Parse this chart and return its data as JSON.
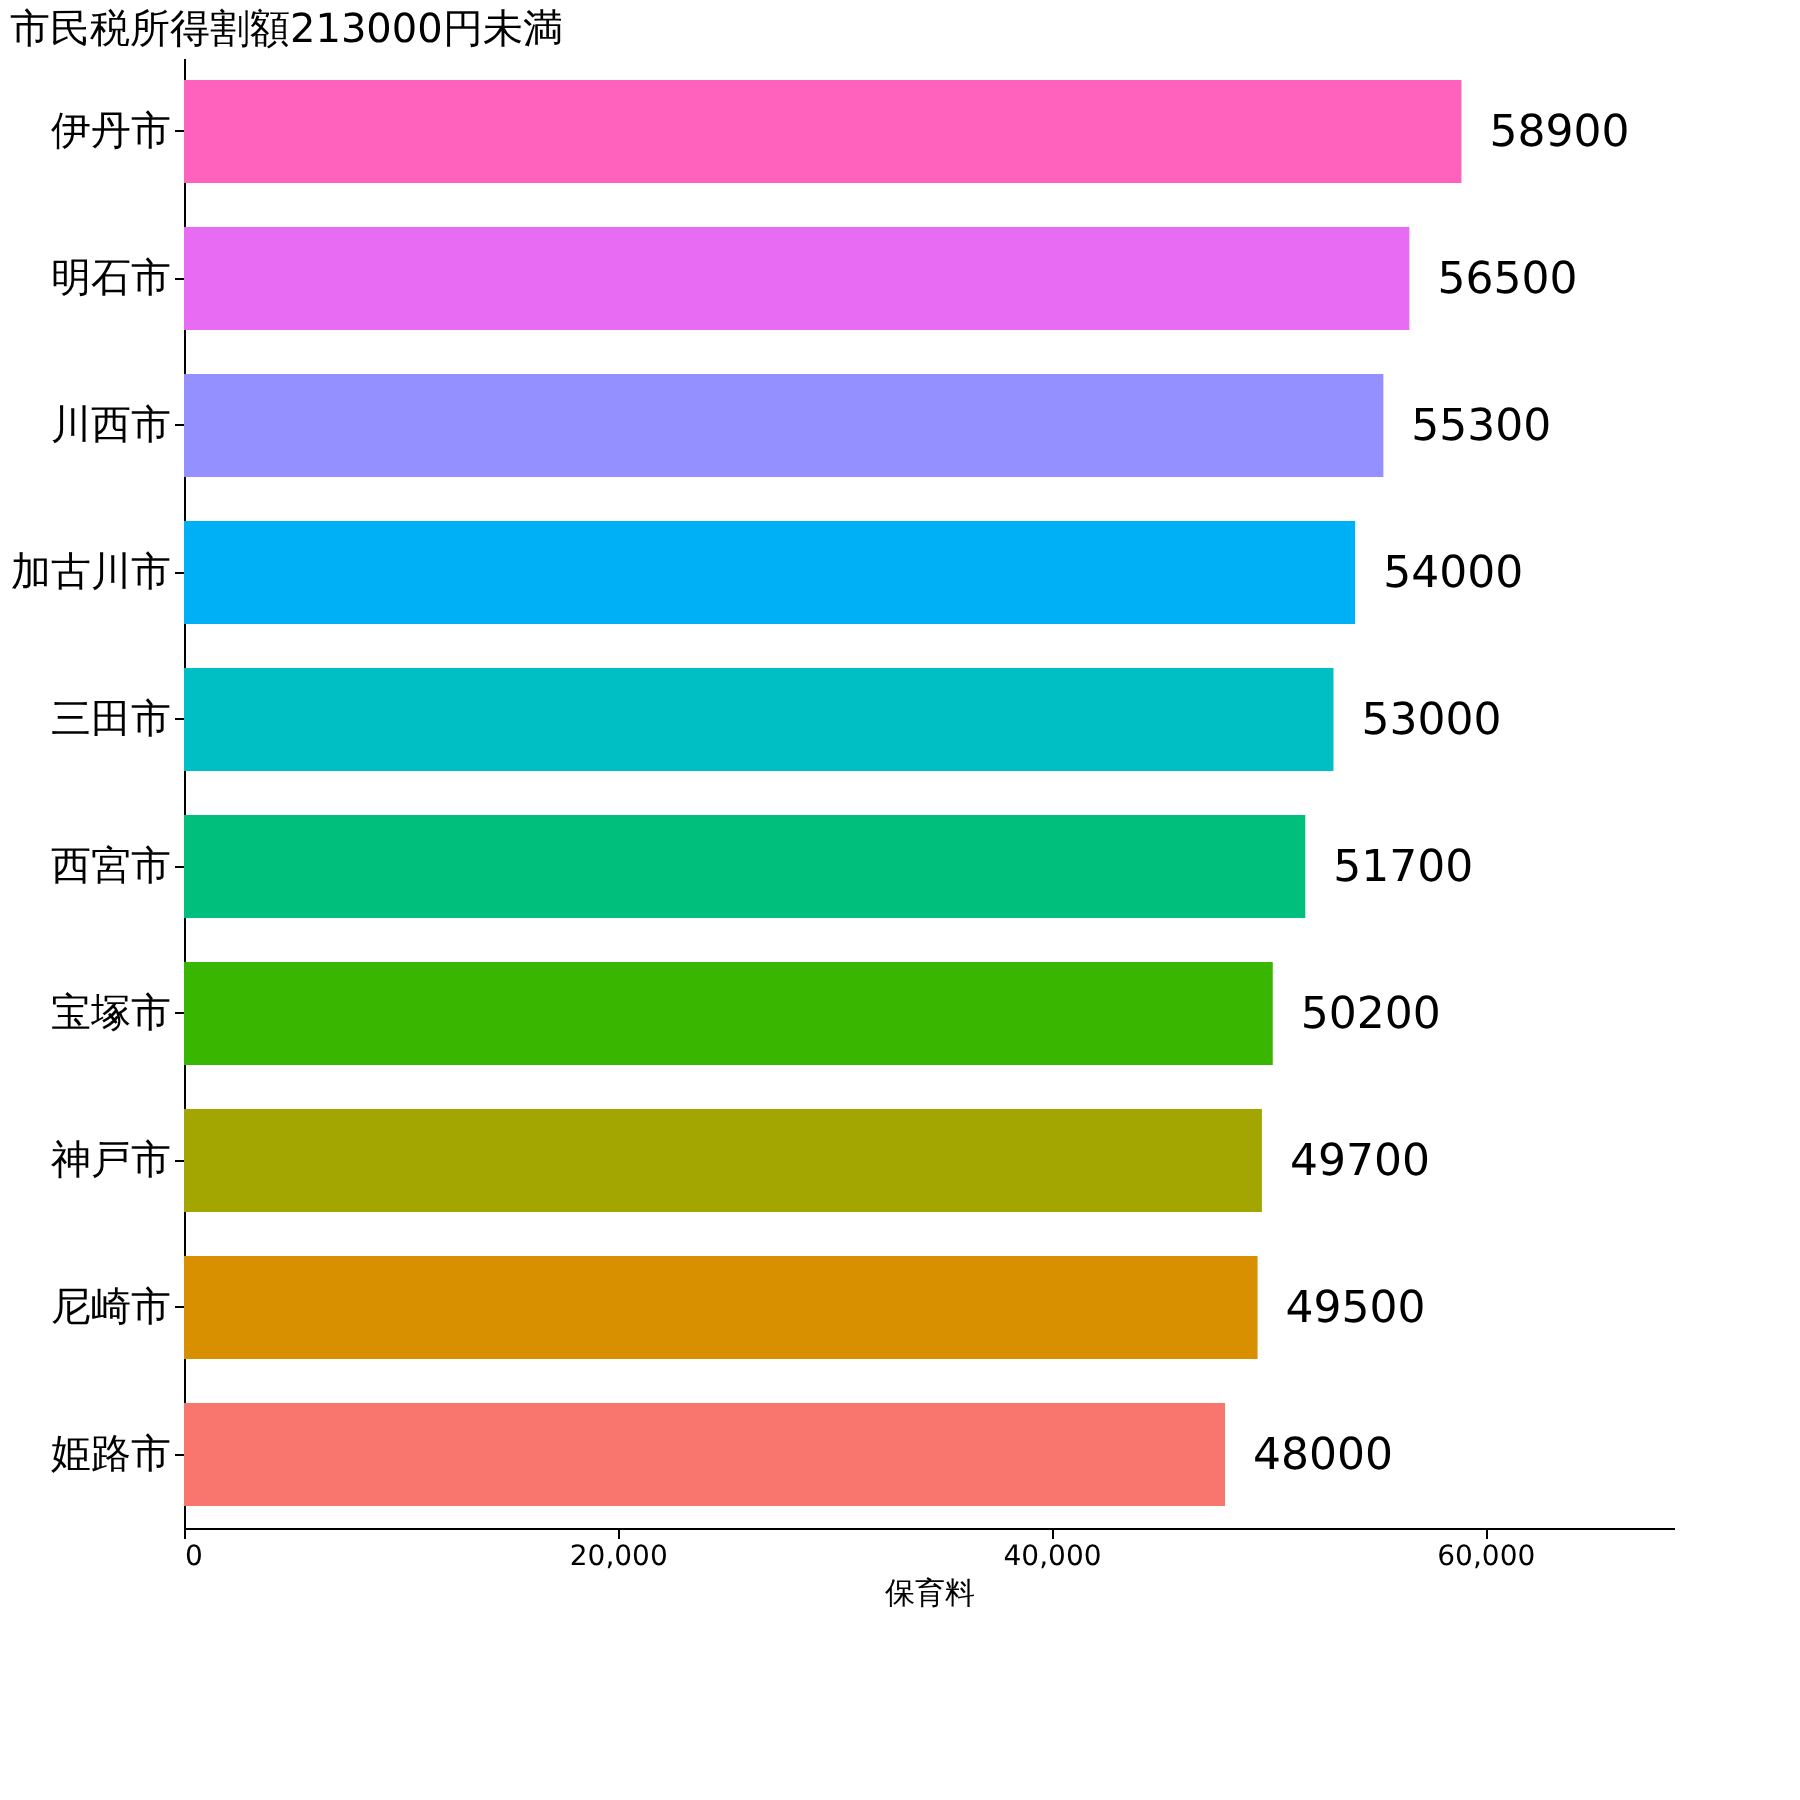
{
  "chart_data": {
    "type": "bar",
    "orientation": "horizontal",
    "title": "市民税所得割額213000円未満",
    "xlabel": "保育料",
    "categories": [
      "伊丹市",
      "明石市",
      "川西市",
      "加古川市",
      "三田市",
      "西宮市",
      "宝塚市",
      "神戸市",
      "尼崎市",
      "姫路市"
    ],
    "values": [
      58900,
      56500,
      55300,
      54000,
      53000,
      51700,
      50200,
      49700,
      49500,
      48000
    ],
    "colors": [
      "#ff62bc",
      "#e76bf3",
      "#9590ff",
      "#00b0f6",
      "#00bfc4",
      "#00bf7d",
      "#39b600",
      "#a3a500",
      "#d89000",
      "#f8766d"
    ],
    "xlim": [
      0,
      68700
    ],
    "xticks": [
      0,
      {
        "value": 20000,
        "label": "20,000"
      },
      {
        "value": 40000,
        "label": "40,000"
      },
      {
        "value": 60000,
        "label": "60,000"
      }
    ],
    "data_labels": true,
    "grid": false
  }
}
